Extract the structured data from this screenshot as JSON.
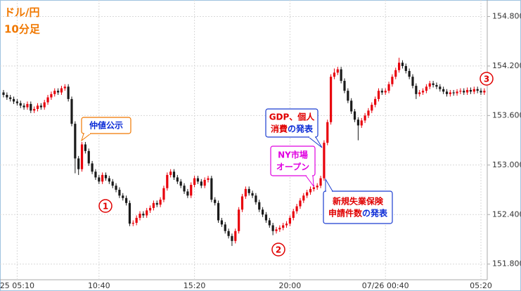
{
  "chart_data": {
    "type": "candlestick",
    "title": "ドル/円",
    "subtitle": "10分足",
    "up_color": "#e8000b",
    "down_color": "#1a1a1a",
    "grid": true,
    "ylim": [
      151.61,
      155.0
    ],
    "yticks": [
      {
        "value": 151.8,
        "label": "151.800"
      },
      {
        "value": 152.4,
        "label": "152.400"
      },
      {
        "value": 153.0,
        "label": "153.000"
      },
      {
        "value": 153.6,
        "label": "153.600"
      },
      {
        "value": 154.2,
        "label": "154.200"
      },
      {
        "value": 154.8,
        "label": "154.800"
      }
    ],
    "xticks": [
      {
        "value": 4,
        "label": "25 05:10"
      },
      {
        "value": 28,
        "label": "10:40"
      },
      {
        "value": 56,
        "label": "15:20"
      },
      {
        "value": 84,
        "label": "20:00"
      },
      {
        "value": 112,
        "label": "07/26 00:40"
      },
      {
        "value": 140,
        "label": "05:20"
      }
    ],
    "open": [
      153.88,
      153.85,
      153.82,
      153.8,
      153.77,
      153.75,
      153.72,
      153.7,
      153.74,
      153.66,
      153.68,
      153.72,
      153.7,
      153.76,
      153.82,
      153.86,
      153.9,
      153.88,
      153.93,
      153.95,
      153.8,
      153.5,
      153.08,
      152.95,
      153.25,
      153.17,
      153.02,
      152.92,
      152.85,
      152.8,
      152.88,
      152.84,
      152.8,
      152.75,
      152.7,
      152.63,
      152.6,
      152.54,
      152.29,
      152.3,
      152.36,
      152.41,
      152.39,
      152.45,
      152.48,
      152.54,
      152.52,
      152.58,
      152.72,
      152.88,
      152.92,
      152.85,
      152.8,
      152.75,
      152.68,
      152.63,
      152.76,
      152.84,
      152.8,
      152.75,
      152.82,
      152.84,
      152.58,
      152.54,
      152.33,
      152.28,
      152.2,
      152.14,
      152.08,
      152.2,
      152.46,
      152.62,
      152.71,
      152.66,
      152.63,
      152.55,
      152.46,
      152.4,
      152.33,
      152.27,
      152.2,
      152.22,
      152.24,
      152.27,
      152.29,
      152.36,
      152.44,
      152.5,
      152.57,
      152.63,
      152.67,
      152.71,
      152.73,
      152.75,
      152.84,
      153.27,
      153.52,
      154.07,
      154.12,
      154.16,
      154.02,
      153.9,
      153.78,
      153.65,
      153.55,
      153.48,
      153.54,
      153.6,
      153.66,
      153.73,
      153.8,
      153.9,
      153.88,
      153.9,
      153.98,
      154.07,
      154.15,
      154.24,
      154.2,
      154.14,
      154.07,
      153.96,
      153.86,
      153.88,
      153.9,
      153.95,
      153.99,
      153.97,
      153.95,
      153.92,
      153.89,
      153.86,
      153.88,
      153.87,
      153.89,
      153.9,
      153.88,
      153.91,
      153.89,
      153.92,
      153.9,
      153.88
    ],
    "high": [
      153.91,
      153.88,
      153.85,
      153.83,
      153.8,
      153.78,
      153.75,
      153.77,
      153.77,
      153.71,
      153.75,
      153.75,
      153.79,
      153.85,
      153.89,
      153.93,
      153.93,
      153.96,
      153.98,
      153.98,
      153.83,
      153.53,
      153.11,
      153.28,
      153.28,
      153.2,
      153.05,
      152.95,
      152.88,
      152.91,
      152.91,
      152.87,
      152.83,
      152.78,
      152.73,
      152.66,
      152.63,
      152.57,
      152.33,
      152.39,
      152.44,
      152.44,
      152.48,
      152.51,
      152.57,
      152.57,
      152.61,
      152.75,
      152.91,
      152.95,
      152.95,
      152.88,
      152.83,
      152.78,
      152.71,
      152.79,
      152.87,
      152.87,
      152.83,
      152.85,
      152.87,
      152.87,
      152.61,
      152.57,
      152.36,
      152.31,
      152.23,
      152.17,
      152.23,
      152.49,
      152.65,
      152.74,
      152.74,
      152.69,
      152.66,
      152.58,
      152.49,
      152.43,
      152.36,
      152.3,
      152.25,
      152.27,
      152.3,
      152.32,
      152.39,
      152.47,
      152.53,
      152.6,
      152.66,
      152.7,
      152.74,
      152.76,
      152.78,
      152.87,
      153.3,
      153.55,
      154.1,
      154.17,
      154.19,
      154.19,
      154.05,
      153.93,
      153.81,
      153.68,
      153.58,
      153.57,
      153.63,
      153.69,
      153.76,
      153.83,
      153.93,
      153.93,
      153.93,
      154.01,
      154.1,
      154.18,
      154.3,
      154.27,
      154.23,
      154.17,
      154.1,
      153.99,
      153.91,
      153.93,
      153.98,
      154.02,
      154.02,
      154.0,
      153.98,
      153.95,
      153.92,
      153.91,
      153.91,
      153.92,
      153.93,
      153.93,
      153.94,
      153.94,
      153.95,
      153.95,
      153.93,
      153.93
    ],
    "low": [
      153.82,
      153.79,
      153.77,
      153.74,
      153.72,
      153.69,
      153.67,
      153.67,
      153.63,
      153.63,
      153.65,
      153.67,
      153.67,
      153.73,
      153.79,
      153.83,
      153.85,
      153.85,
      153.9,
      153.77,
      153.47,
      152.9,
      152.88,
      152.92,
      153.14,
      152.99,
      152.89,
      152.82,
      152.77,
      152.77,
      152.81,
      152.77,
      152.72,
      152.67,
      152.6,
      152.57,
      152.51,
      152.26,
      152.26,
      152.27,
      152.33,
      152.36,
      152.36,
      152.42,
      152.45,
      152.49,
      152.49,
      152.55,
      152.69,
      152.85,
      152.82,
      152.77,
      152.72,
      152.65,
      152.6,
      152.6,
      152.73,
      152.77,
      152.72,
      152.72,
      152.79,
      152.55,
      152.51,
      152.3,
      152.25,
      152.17,
      152.11,
      152.02,
      152.05,
      152.17,
      152.43,
      152.59,
      152.63,
      152.6,
      152.52,
      152.43,
      152.37,
      152.3,
      152.24,
      152.15,
      152.17,
      152.19,
      152.21,
      152.24,
      152.26,
      152.33,
      152.41,
      152.47,
      152.54,
      152.6,
      152.64,
      152.68,
      152.7,
      152.72,
      152.81,
      153.24,
      153.49,
      154.04,
      154.09,
      153.99,
      153.87,
      153.75,
      153.62,
      153.52,
      153.3,
      153.45,
      153.51,
      153.57,
      153.63,
      153.7,
      153.77,
      153.85,
      153.85,
      153.87,
      153.95,
      154.04,
      154.12,
      154.17,
      154.11,
      154.04,
      153.93,
      153.8,
      153.83,
      153.85,
      153.87,
      153.92,
      153.94,
      153.92,
      153.89,
      153.86,
      153.83,
      153.83,
      153.84,
      153.84,
      153.86,
      153.85,
      153.85,
      153.86,
      153.86,
      153.87,
      153.85,
      153.85
    ],
    "close": [
      153.85,
      153.82,
      153.8,
      153.77,
      153.75,
      153.72,
      153.7,
      153.74,
      153.66,
      153.68,
      153.72,
      153.7,
      153.76,
      153.82,
      153.86,
      153.9,
      153.88,
      153.93,
      153.95,
      153.8,
      153.5,
      153.08,
      152.95,
      153.25,
      153.17,
      153.02,
      152.92,
      152.85,
      152.8,
      152.88,
      152.84,
      152.8,
      152.75,
      152.7,
      152.63,
      152.6,
      152.54,
      152.29,
      152.3,
      152.36,
      152.41,
      152.39,
      152.45,
      152.48,
      152.54,
      152.52,
      152.58,
      152.72,
      152.88,
      152.92,
      152.85,
      152.8,
      152.75,
      152.68,
      152.63,
      152.76,
      152.84,
      152.8,
      152.75,
      152.82,
      152.84,
      152.58,
      152.54,
      152.33,
      152.28,
      152.2,
      152.14,
      152.08,
      152.2,
      152.46,
      152.62,
      152.71,
      152.66,
      152.63,
      152.55,
      152.46,
      152.4,
      152.33,
      152.27,
      152.2,
      152.22,
      152.24,
      152.27,
      152.29,
      152.36,
      152.44,
      152.5,
      152.57,
      152.63,
      152.67,
      152.71,
      152.73,
      152.75,
      152.84,
      153.27,
      153.52,
      154.07,
      154.12,
      154.16,
      154.02,
      153.9,
      153.78,
      153.65,
      153.55,
      153.48,
      153.54,
      153.6,
      153.66,
      153.73,
      153.8,
      153.9,
      153.88,
      153.9,
      153.98,
      154.07,
      154.15,
      154.24,
      154.2,
      154.14,
      154.07,
      153.96,
      153.86,
      153.88,
      153.9,
      153.95,
      153.99,
      153.97,
      153.95,
      153.92,
      153.89,
      153.86,
      153.88,
      153.87,
      153.89,
      153.9,
      153.88,
      153.91,
      153.89,
      153.92,
      153.9,
      153.88,
      153.9
    ],
    "callouts": [
      {
        "lines": [
          [
            [
              "仲値公示",
              "#0a2ad6"
            ]
          ]
        ],
        "border": "#f07800"
      },
      {
        "lines": [
          [
            [
              "GDP、個人",
              "#e00000"
            ]
          ],
          [
            [
              "消費",
              "#e00000"
            ],
            [
              "の発表",
              "#0a2ad6"
            ]
          ]
        ],
        "border": "#1a3cd0"
      },
      {
        "lines": [
          [
            [
              "NY市場",
              "#e000e0"
            ]
          ],
          [
            [
              "オープン",
              "#e000e0"
            ]
          ]
        ],
        "border": "#e000e0"
      },
      {
        "lines": [
          [
            [
              "新規失業保険",
              "#e00000"
            ]
          ],
          [
            [
              "申請件数",
              "#e00000"
            ],
            [
              "の発表",
              "#0a2ad6"
            ]
          ]
        ],
        "border": "#1a3cd0"
      }
    ],
    "markers": [
      "1",
      "2",
      "3"
    ],
    "marker_color": "#e00000"
  }
}
